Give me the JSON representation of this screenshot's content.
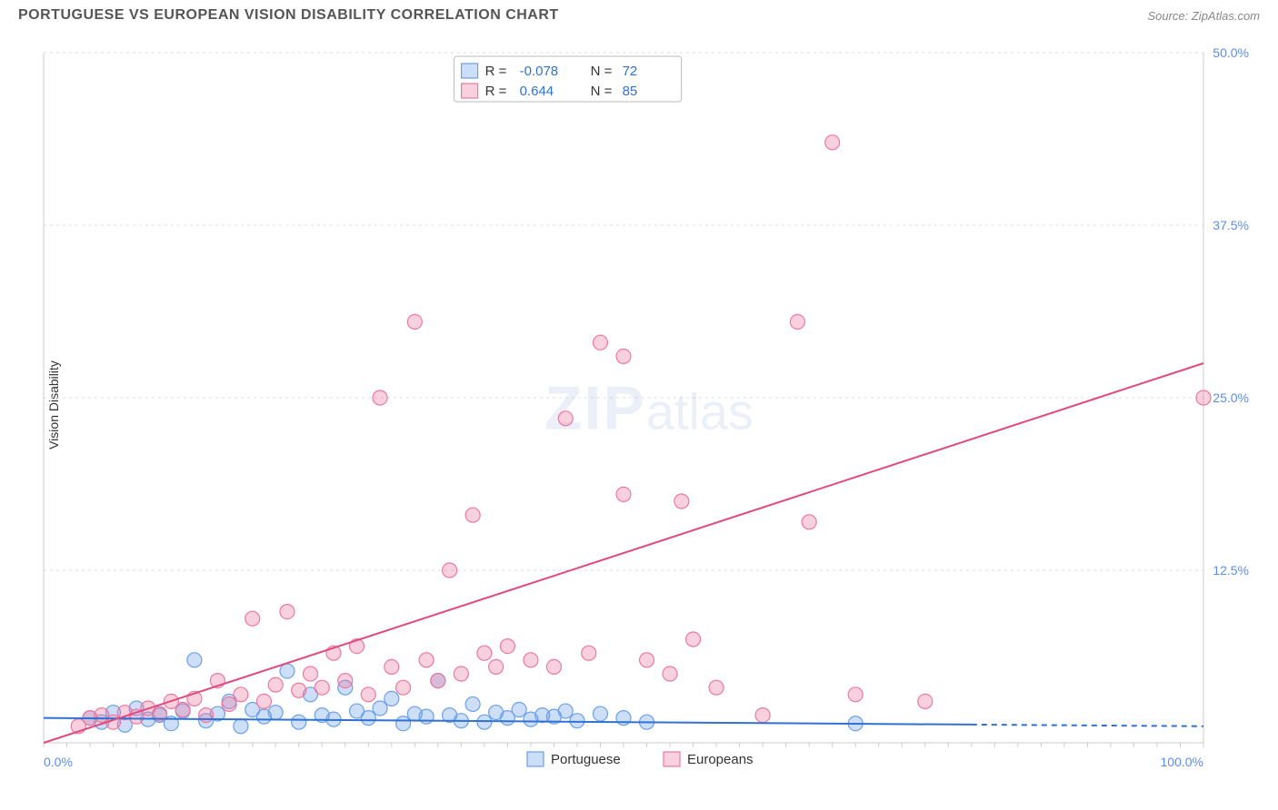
{
  "header": {
    "title": "PORTUGUESE VS EUROPEAN VISION DISABILITY CORRELATION CHART",
    "source": "Source: ZipAtlas.com"
  },
  "watermark": {
    "part1": "ZIP",
    "part2": "atlas"
  },
  "chart": {
    "type": "scatter",
    "ylabel": "Vision Disability",
    "background_color": "#ffffff",
    "grid_color": "#dcdcdc",
    "axis_color": "#cccccc",
    "tick_color": "#5b8def",
    "tick_fontsize": 14,
    "label_fontsize": 14,
    "xlim": [
      0,
      100
    ],
    "ylim": [
      0,
      50
    ],
    "yticks": [
      12.5,
      25.0,
      37.5,
      50.0
    ],
    "ytick_labels": [
      "12.5%",
      "25.0%",
      "37.5%",
      "50.0%"
    ],
    "xticks": [
      0,
      100
    ],
    "xtick_labels": [
      "0.0%",
      "100.0%"
    ],
    "marker_radius": 8,
    "marker_stroke_width": 1.2,
    "series": [
      {
        "name": "Portuguese",
        "color_fill": "rgba(108,160,234,0.35)",
        "color_stroke": "#6ca0ea",
        "r_value": "-0.078",
        "n_value": "72",
        "trend": {
          "x1": 0,
          "y1": 1.8,
          "x2": 100,
          "y2": 1.2,
          "color": "#2f72d4",
          "width": 2,
          "solid_until_x": 80
        },
        "points": [
          [
            4,
            1.8
          ],
          [
            5,
            1.5
          ],
          [
            6,
            2.2
          ],
          [
            7,
            1.3
          ],
          [
            8,
            2.5
          ],
          [
            9,
            1.7
          ],
          [
            10,
            2.0
          ],
          [
            11,
            1.4
          ],
          [
            12,
            2.3
          ],
          [
            13,
            6.0
          ],
          [
            14,
            1.6
          ],
          [
            15,
            2.1
          ],
          [
            16,
            3.0
          ],
          [
            17,
            1.2
          ],
          [
            18,
            2.4
          ],
          [
            19,
            1.9
          ],
          [
            20,
            2.2
          ],
          [
            21,
            5.2
          ],
          [
            22,
            1.5
          ],
          [
            23,
            3.5
          ],
          [
            24,
            2.0
          ],
          [
            25,
            1.7
          ],
          [
            26,
            4.0
          ],
          [
            27,
            2.3
          ],
          [
            28,
            1.8
          ],
          [
            29,
            2.5
          ],
          [
            30,
            3.2
          ],
          [
            31,
            1.4
          ],
          [
            32,
            2.1
          ],
          [
            33,
            1.9
          ],
          [
            34,
            4.5
          ],
          [
            35,
            2.0
          ],
          [
            36,
            1.6
          ],
          [
            37,
            2.8
          ],
          [
            38,
            1.5
          ],
          [
            39,
            2.2
          ],
          [
            40,
            1.8
          ],
          [
            41,
            2.4
          ],
          [
            42,
            1.7
          ],
          [
            43,
            2.0
          ],
          [
            44,
            1.9
          ],
          [
            45,
            2.3
          ],
          [
            46,
            1.6
          ],
          [
            48,
            2.1
          ],
          [
            50,
            1.8
          ],
          [
            52,
            1.5
          ],
          [
            70,
            1.4
          ]
        ]
      },
      {
        "name": "Europeans",
        "color_fill": "rgba(238,120,160,0.35)",
        "color_stroke": "#ee78a0",
        "r_value": "0.644",
        "n_value": "85",
        "trend": {
          "x1": 0,
          "y1": -1.0,
          "x2": 100,
          "y2": 27.5,
          "color": "#e04a7e",
          "width": 2,
          "solid_until_x": 100
        },
        "points": [
          [
            3,
            1.2
          ],
          [
            4,
            1.8
          ],
          [
            5,
            2.0
          ],
          [
            6,
            1.5
          ],
          [
            7,
            2.2
          ],
          [
            8,
            1.9
          ],
          [
            9,
            2.5
          ],
          [
            10,
            2.1
          ],
          [
            11,
            3.0
          ],
          [
            12,
            2.4
          ],
          [
            13,
            3.2
          ],
          [
            14,
            2.0
          ],
          [
            15,
            4.5
          ],
          [
            16,
            2.8
          ],
          [
            17,
            3.5
          ],
          [
            18,
            9.0
          ],
          [
            19,
            3.0
          ],
          [
            20,
            4.2
          ],
          [
            21,
            9.5
          ],
          [
            22,
            3.8
          ],
          [
            23,
            5.0
          ],
          [
            24,
            4.0
          ],
          [
            25,
            6.5
          ],
          [
            26,
            4.5
          ],
          [
            27,
            7.0
          ],
          [
            28,
            3.5
          ],
          [
            29,
            25.0
          ],
          [
            30,
            5.5
          ],
          [
            31,
            4.0
          ],
          [
            32,
            30.5
          ],
          [
            33,
            6.0
          ],
          [
            34,
            4.5
          ],
          [
            35,
            12.5
          ],
          [
            36,
            5.0
          ],
          [
            37,
            16.5
          ],
          [
            38,
            6.5
          ],
          [
            39,
            5.5
          ],
          [
            40,
            7.0
          ],
          [
            42,
            6.0
          ],
          [
            44,
            5.5
          ],
          [
            45,
            23.5
          ],
          [
            47,
            6.5
          ],
          [
            48,
            29.0
          ],
          [
            50,
            28.0
          ],
          [
            50,
            18.0
          ],
          [
            52,
            6.0
          ],
          [
            54,
            5.0
          ],
          [
            55,
            17.5
          ],
          [
            56,
            7.5
          ],
          [
            58,
            4.0
          ],
          [
            62,
            2.0
          ],
          [
            65,
            30.5
          ],
          [
            66,
            16.0
          ],
          [
            68,
            43.5
          ],
          [
            70,
            3.5
          ],
          [
            76,
            3.0
          ],
          [
            100,
            25.0
          ]
        ]
      }
    ],
    "legend_top": {
      "r_label": "R =",
      "n_label": "N =",
      "value_color": "#2f72d4"
    },
    "legend_bottom": {
      "items": [
        {
          "label": "Portuguese",
          "fill": "rgba(108,160,234,0.35)",
          "stroke": "#6ca0ea"
        },
        {
          "label": "Europeans",
          "fill": "rgba(238,120,160,0.35)",
          "stroke": "#ee78a0"
        }
      ]
    }
  }
}
